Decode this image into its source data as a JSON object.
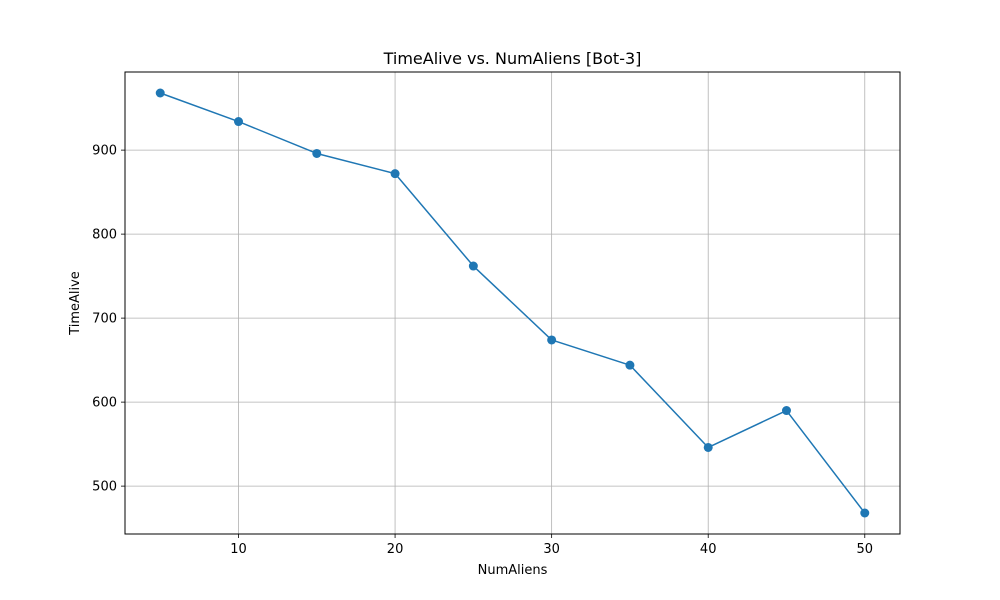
{
  "chart_data": {
    "type": "line",
    "title": "TimeAlive vs. NumAliens [Bot-3]",
    "xlabel": "NumAliens",
    "ylabel": "TimeAlive",
    "x": [
      5,
      10,
      15,
      20,
      25,
      30,
      35,
      40,
      45,
      50
    ],
    "series": [
      {
        "values": [
          968,
          934,
          896,
          872,
          762,
          674,
          644,
          546,
          590,
          468
        ]
      }
    ],
    "xlim": [
      2.75,
      52.25
    ],
    "ylim": [
      443,
      993
    ],
    "xticks": [
      "10",
      "20",
      "30",
      "40",
      "50"
    ],
    "yticks": [
      "500",
      "600",
      "700",
      "800",
      "900"
    ],
    "grid": true,
    "marker": "circle",
    "colors": {
      "series": "#1f77b4",
      "grid": "#b0b0b0",
      "axes": "#000000"
    }
  }
}
